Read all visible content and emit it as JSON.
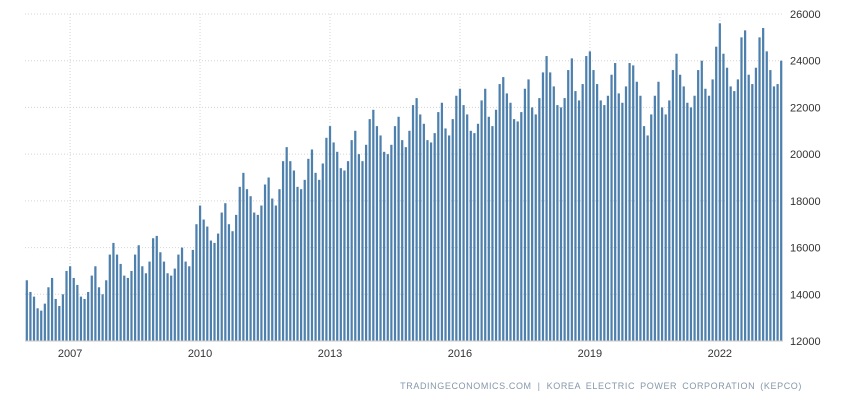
{
  "chart_data": {
    "type": "bar",
    "title": "",
    "frequency": "monthly",
    "x_start": "2006-01",
    "x_end": "2023-06",
    "x_tick_labels": [
      "2007",
      "2010",
      "2013",
      "2016",
      "2019",
      "2022"
    ],
    "x_tick_month_index": [
      12,
      48,
      84,
      120,
      156,
      192
    ],
    "y_ticks": [
      12000,
      14000,
      16000,
      18000,
      20000,
      22000,
      24000,
      26000
    ],
    "ylim": [
      12000,
      26000
    ],
    "grid": "dotted",
    "legend": "none",
    "bar_color": "#4e80ad",
    "grid_color": "#d4d4d4",
    "axis_line_color": "#c8c8c8",
    "tick_label_color": "#333333",
    "values": [
      14600,
      14100,
      13900,
      13400,
      13300,
      13600,
      14300,
      14700,
      13800,
      13500,
      14000,
      15000,
      15200,
      14700,
      14400,
      13900,
      13800,
      14100,
      14800,
      15200,
      14300,
      14000,
      14600,
      15700,
      16200,
      15700,
      15300,
      14800,
      14700,
      15000,
      15700,
      16100,
      15200,
      14900,
      15400,
      16400,
      16500,
      15800,
      15400,
      14900,
      14800,
      15100,
      15700,
      16000,
      15400,
      15200,
      15900,
      17000,
      17800,
      17200,
      16900,
      16300,
      16200,
      16600,
      17500,
      17900,
      17000,
      16700,
      17400,
      18600,
      19200,
      18500,
      18200,
      17500,
      17400,
      17800,
      18700,
      19000,
      18100,
      17800,
      18500,
      19700,
      20300,
      19700,
      19300,
      18600,
      18500,
      18900,
      19800,
      20200,
      19200,
      18900,
      19600,
      20700,
      21200,
      20500,
      20100,
      19400,
      19300,
      19700,
      20600,
      21000,
      20000,
      19700,
      20400,
      21500,
      21900,
      21200,
      20800,
      20100,
      20000,
      20400,
      21200,
      21600,
      20600,
      20300,
      21000,
      22100,
      22400,
      21700,
      21300,
      20600,
      20500,
      20900,
      21800,
      22200,
      21100,
      20800,
      21500,
      22500,
      22800,
      22100,
      21700,
      21000,
      20900,
      21300,
      22300,
      22800,
      21600,
      21200,
      21900,
      23000,
      23300,
      22600,
      22200,
      21500,
      21400,
      21800,
      22800,
      23200,
      22000,
      21700,
      22400,
      23500,
      24200,
      23500,
      22900,
      22100,
      22000,
      22400,
      23600,
      24100,
      22700,
      22300,
      23000,
      24200,
      24400,
      23600,
      23000,
      22300,
      22100,
      22500,
      23400,
      23900,
      22600,
      22200,
      22900,
      23900,
      23800,
      23100,
      22500,
      21200,
      20800,
      21700,
      22500,
      23100,
      22000,
      21700,
      22300,
      23600,
      24300,
      23400,
      22900,
      22200,
      22000,
      22500,
      23600,
      24000,
      22800,
      22500,
      23200,
      24600,
      25600,
      24300,
      23700,
      22900,
      22700,
      23200,
      25000,
      25300,
      23400,
      23000,
      23700,
      25000,
      25400,
      24400,
      23600,
      22900,
      23000,
      24000
    ]
  },
  "footer": {
    "source_left": "TRADINGECONOMICS.COM",
    "separator": "|",
    "source_right": "KOREA  ELECTRIC  POWER  CORPORATION  (KEPCO)"
  }
}
